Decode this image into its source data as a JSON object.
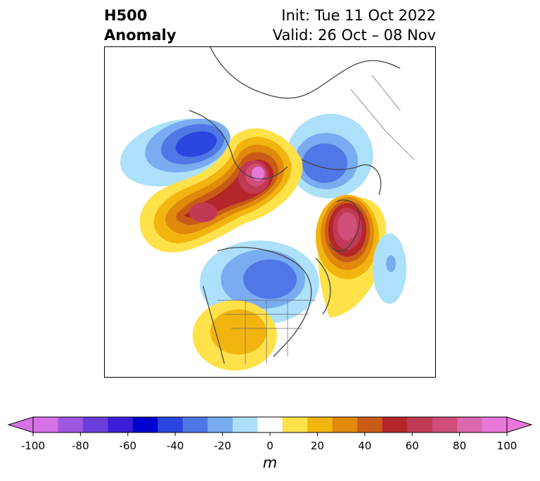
{
  "title": {
    "left_line1": "H500",
    "left_line2": "Anomaly",
    "right_line1": "Init: Tue 11 Oct 2022",
    "right_line2": "Valid: 26 Oct – 08 Nov"
  },
  "colorbar": {
    "unit": "m",
    "ticks": [
      "-100",
      "-80",
      "-60",
      "-40",
      "-20",
      "0",
      "20",
      "40",
      "60",
      "80",
      "100"
    ],
    "levels": [
      -100,
      -90,
      -80,
      -70,
      -60,
      -50,
      -40,
      -30,
      -20,
      -10,
      10,
      20,
      30,
      40,
      50,
      60,
      70,
      80,
      90,
      100
    ],
    "colors": [
      "#d671e6",
      "#9f56e0",
      "#6b3ddb",
      "#3a1fd6",
      "#0000cf",
      "#2a46de",
      "#4f78e6",
      "#79acf0",
      "#ade0fa",
      "#ffffff",
      "#ffe14a",
      "#f2b50f",
      "#e0890c",
      "#c85c16",
      "#b3262a",
      "#c23955",
      "#cf4f7a",
      "#dc68ae",
      "#e878da"
    ],
    "extend_low_color": "#d671e6",
    "extend_high_color": "#e878da"
  },
  "map": {
    "projection": "north polar stereographic",
    "features": [
      "coastlines",
      "country borders",
      "US state borders"
    ],
    "anomaly_centers": [
      {
        "region": "Alaska / Bering",
        "sign": "negative",
        "peak_m": -60
      },
      {
        "region": "Siberia / Kamchatka",
        "sign": "positive",
        "peak_m": 90
      },
      {
        "region": "Scandinavia / Western Russia",
        "sign": "negative",
        "peak_m": -50
      },
      {
        "region": "Greenland / North Atlantic",
        "sign": "positive",
        "peak_m": 80
      },
      {
        "region": "Central Canada",
        "sign": "negative",
        "peak_m": -50
      },
      {
        "region": "Southwestern United States",
        "sign": "positive",
        "peak_m": 30
      },
      {
        "region": "Eastern Atlantic",
        "sign": "negative",
        "peak_m": -30
      }
    ]
  }
}
